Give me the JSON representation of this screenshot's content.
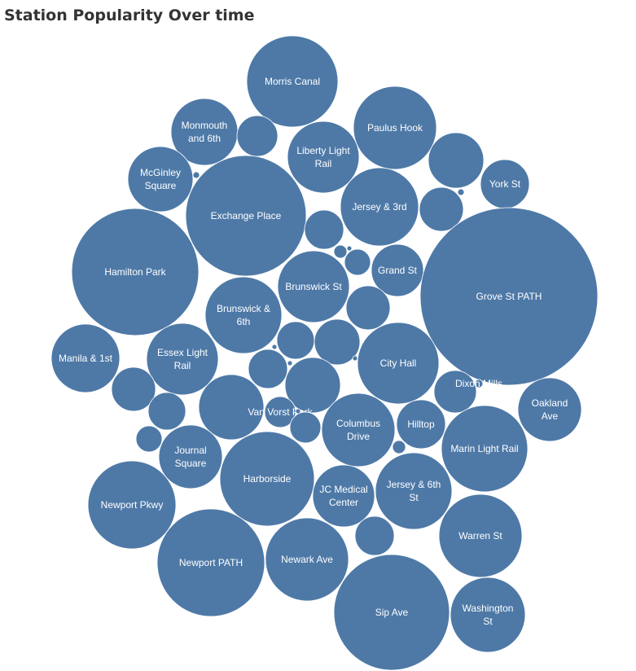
{
  "title": "Station Popularity Over time",
  "colors": {
    "bubble": "#4e79a7",
    "label": "#ffffff",
    "title": "#333333"
  },
  "chart_data": {
    "type": "packed-bubble",
    "title": "Station Popularity Over time",
    "bubbles": [
      {
        "label": "Morris Canal",
        "lines": [
          "Morris Canal"
        ]
      },
      {
        "label": "Monmouth and 6th",
        "lines": [
          "Monmouth",
          "and 6th"
        ]
      },
      {
        "label": "",
        "lines": []
      },
      {
        "label": "Liberty Light Rail",
        "lines": [
          "Liberty Light",
          "Rail"
        ]
      },
      {
        "label": "Paulus Hook",
        "lines": [
          "Paulus Hook"
        ]
      },
      {
        "label": "",
        "lines": []
      },
      {
        "label": "McGinley Square",
        "lines": [
          "McGinley",
          "Square"
        ]
      },
      {
        "label": "",
        "lines": []
      },
      {
        "label": "Exchange Place",
        "lines": [
          "Exchange Place"
        ]
      },
      {
        "label": "Jersey & 3rd",
        "lines": [
          "Jersey & 3rd"
        ]
      },
      {
        "label": "York St",
        "lines": [
          "York St"
        ]
      },
      {
        "label": "",
        "lines": []
      },
      {
        "label": "",
        "lines": []
      },
      {
        "label": "",
        "lines": []
      },
      {
        "label": "Hamilton Park",
        "lines": [
          "Hamilton Park"
        ]
      },
      {
        "label": "",
        "lines": []
      },
      {
        "label": "",
        "lines": []
      },
      {
        "label": "",
        "lines": []
      },
      {
        "label": "Grand St",
        "lines": [
          "Grand St"
        ]
      },
      {
        "label": "Grove St PATH",
        "lines": [
          "Grove St PATH"
        ]
      },
      {
        "label": "Brunswick St",
        "lines": [
          "Brunswick St"
        ]
      },
      {
        "label": "Brunswick & 6th",
        "lines": [
          "Brunswick &",
          "6th"
        ]
      },
      {
        "label": "",
        "lines": []
      },
      {
        "label": "",
        "lines": []
      },
      {
        "label": "",
        "lines": []
      },
      {
        "label": "Manila & 1st",
        "lines": [
          "Manila & 1st"
        ]
      },
      {
        "label": "Essex Light Rail",
        "lines": [
          "Essex Light",
          "Rail"
        ]
      },
      {
        "label": "City Hall",
        "lines": [
          "City Hall"
        ]
      },
      {
        "label": "",
        "lines": []
      },
      {
        "label": "",
        "lines": []
      },
      {
        "label": "",
        "lines": []
      },
      {
        "label": "",
        "lines": []
      },
      {
        "label": "",
        "lines": []
      },
      {
        "label": "",
        "lines": []
      },
      {
        "label": "Oakland Ave",
        "lines": [
          "Oakland",
          "Ave"
        ]
      },
      {
        "label": "",
        "lines": []
      },
      {
        "label": "Dixon Mills",
        "lines": [
          "Dixon Mills"
        ]
      },
      {
        "label": "",
        "lines": []
      },
      {
        "label": "",
        "lines": []
      },
      {
        "label": "Van Vorst Park",
        "lines": [
          "Van Vorst Park"
        ]
      },
      {
        "label": "",
        "lines": []
      },
      {
        "label": "",
        "lines": []
      },
      {
        "label": "Columbus Drive",
        "lines": [
          "Columbus",
          "Drive"
        ]
      },
      {
        "label": "Hilltop",
        "lines": [
          "Hilltop"
        ]
      },
      {
        "label": "Marin Light Rail",
        "lines": [
          "Marin Light Rail"
        ]
      },
      {
        "label": "",
        "lines": []
      },
      {
        "label": "Journal Square",
        "lines": [
          "Journal",
          "Square"
        ]
      },
      {
        "label": "",
        "lines": []
      },
      {
        "label": "Harborside",
        "lines": [
          "Harborside"
        ]
      },
      {
        "label": "JC Medical Center",
        "lines": [
          "JC Medical",
          "Center"
        ]
      },
      {
        "label": "Jersey & 6th St",
        "lines": [
          "Jersey & 6th",
          "St"
        ]
      },
      {
        "label": "Newport Pkwy",
        "lines": [
          "Newport Pkwy"
        ]
      },
      {
        "label": "Warren St",
        "lines": [
          "Warren St"
        ]
      },
      {
        "label": "",
        "lines": []
      },
      {
        "label": "Newport PATH",
        "lines": [
          "Newport PATH"
        ]
      },
      {
        "label": "Newark Ave",
        "lines": [
          "Newark Ave"
        ]
      },
      {
        "label": "Sip Ave",
        "lines": [
          "Sip Ave"
        ]
      },
      {
        "label": "Washington St",
        "lines": [
          "Washington",
          "St"
        ]
      }
    ]
  }
}
